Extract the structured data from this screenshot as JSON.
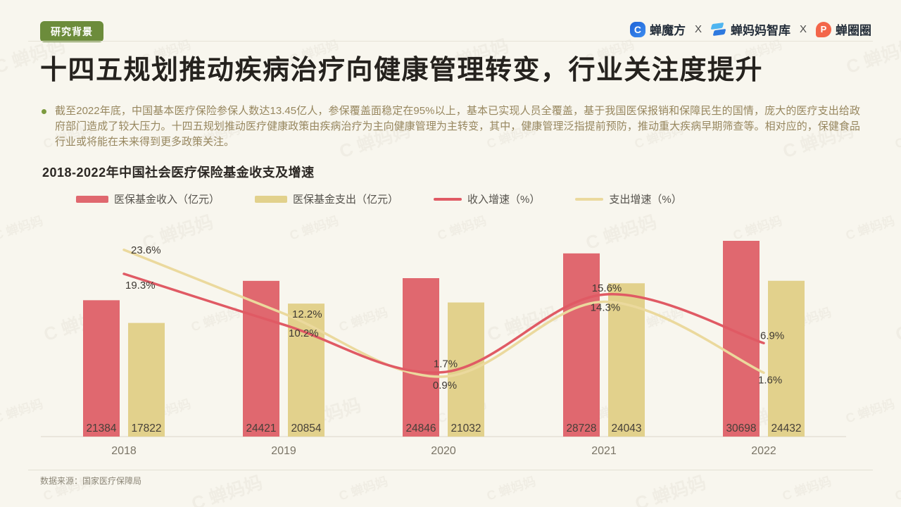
{
  "header": {
    "badge": "研究背景",
    "separator": "X",
    "brands": [
      "蝉魔方",
      "蝉妈妈智库",
      "蝉圈圈"
    ]
  },
  "title": "十四五规划推动疾病治疗向健康管理转变，行业关注度提升",
  "intro": {
    "text": "截至2022年底，中国基本医疗保险参保人数达13.45亿人，参保覆盖面稳定在95%以上，基本已实现人员全覆盖，基于我国医保报销和保障民生的国情，庞大的医疗支出给政府部门造成了较大压力。十四五规划推动医疗健康政策由疾病治疗为主向健康管理为主转变，其中，健康管理泛指提前预防，推动重大疾病早期筛查等。相对应的，保健食品行业或将能在未来得到更多政策关注。"
  },
  "chart_data": {
    "type": "bar",
    "title": "2018-2022年中国社会医疗保险基金收支及增速",
    "categories": [
      "2018",
      "2019",
      "2020",
      "2021",
      "2022"
    ],
    "series": [
      {
        "name": "医保基金收入（亿元）",
        "kind": "bar",
        "color": "#E0686F",
        "values": [
          21384,
          24421,
          24846,
          28728,
          30698
        ]
      },
      {
        "name": "医保基金支出（亿元）",
        "kind": "bar",
        "color": "#E2D18C",
        "values": [
          17822,
          20854,
          21032,
          24043,
          24432
        ]
      },
      {
        "name": "收入增速（%）",
        "kind": "line",
        "color": "#E05A64",
        "values": [
          19.3,
          10.2,
          1.7,
          15.6,
          6.9
        ]
      },
      {
        "name": "支出增速（%）",
        "kind": "line",
        "color": "#EBD99D",
        "values": [
          23.6,
          12.2,
          0.9,
          14.3,
          1.6
        ]
      }
    ],
    "bar_label_color": "#453F38",
    "pct_label_color": "#3E3933",
    "axis_color": "#DBD7CB",
    "category_label_color": "#7A7466",
    "legend_position": "top-left",
    "grid": false
  },
  "footer": {
    "source": "数据来源：国家医疗保障局"
  },
  "watermark": {
    "text": "C 蝉妈妈"
  },
  "colors": {
    "background": "#F8F6EE",
    "badge_green": "#6C8C3B",
    "accent_red": "#E0686F",
    "accent_tan": "#E2D18C"
  }
}
